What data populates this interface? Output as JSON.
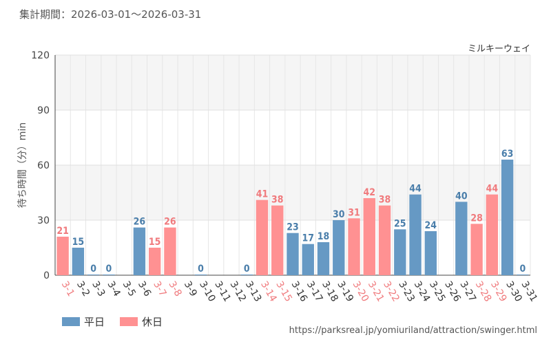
{
  "header": {
    "period": "集計期間：2026-03-01～2026-03-31"
  },
  "attraction_name": "ミルキーウェイ",
  "source_url": "https://parksreal.jp/yomiuriland/attraction/swinger.html",
  "chart_data": {
    "type": "bar",
    "title": "",
    "ylabel": "待ち時間（分）min",
    "xlabel": "",
    "ylim": [
      0,
      120
    ],
    "yticks": [
      "0",
      "30",
      "60",
      "90",
      "120"
    ],
    "grid": true,
    "legend_position": "bottom-left",
    "categories": [
      "3-1",
      "3-2",
      "3-3",
      "3-4",
      "3-5",
      "3-6",
      "3-7",
      "3-8",
      "3-9",
      "3-10",
      "3-11",
      "3-12",
      "3-13",
      "3-14",
      "3-15",
      "3-16",
      "3-17",
      "3-18",
      "3-19",
      "3-20",
      "3-21",
      "3-22",
      "3-23",
      "3-24",
      "3-25",
      "3-26",
      "3-27",
      "3-28",
      "3-29",
      "3-30",
      "3-31"
    ],
    "values": [
      21,
      15,
      0,
      0,
      null,
      26,
      15,
      26,
      null,
      0,
      null,
      null,
      0,
      41,
      38,
      23,
      17,
      18,
      30,
      31,
      42,
      38,
      25,
      44,
      24,
      null,
      40,
      28,
      44,
      63,
      0
    ],
    "day_type": [
      "holiday",
      "weekday",
      "weekday",
      "weekday",
      "weekday",
      "weekday",
      "holiday",
      "holiday",
      "weekday",
      "weekday",
      "weekday",
      "weekday",
      "weekday",
      "holiday",
      "holiday",
      "weekday",
      "weekday",
      "weekday",
      "weekday",
      "holiday",
      "holiday",
      "holiday",
      "weekday",
      "weekday",
      "weekday",
      "weekday",
      "weekday",
      "holiday",
      "holiday",
      "weekday",
      "weekday"
    ],
    "legend": [
      {
        "key": "weekday",
        "label": "平日",
        "color": "#6699c4"
      },
      {
        "key": "holiday",
        "label": "休日",
        "color": "#ff9192"
      }
    ],
    "label_colors": {
      "weekday": "#4a7eaa",
      "holiday": "#f07a7d",
      "axis_weekday": "#333333"
    }
  }
}
